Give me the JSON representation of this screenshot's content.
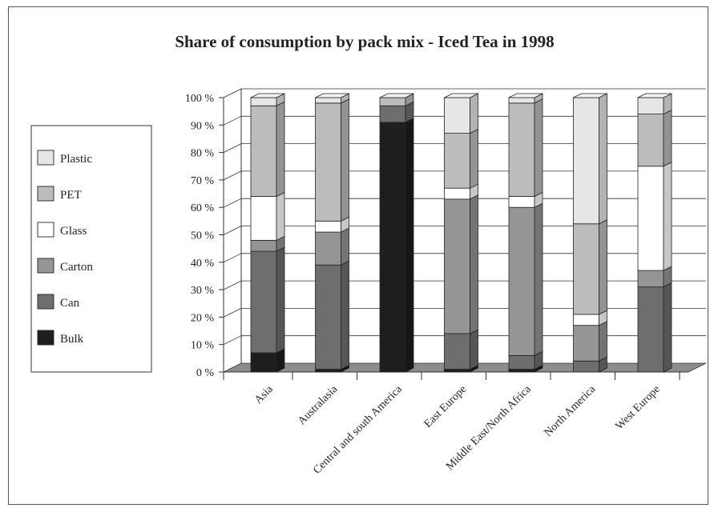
{
  "chart_data": {
    "type": "bar",
    "stacked": true,
    "title": "Share of consumption by pack mix - Iced Tea in 1998",
    "categories": [
      "Asia",
      "Australasia",
      "Central and south America",
      "East Europe",
      "Middle East/North Africa",
      "North America",
      "West Europe"
    ],
    "series": [
      {
        "name": "Bulk",
        "color": "#1e1e1e",
        "values": [
          7,
          1,
          91,
          1,
          1,
          0,
          0
        ]
      },
      {
        "name": "Can",
        "color": "#6e6e6e",
        "values": [
          37,
          38,
          6,
          13,
          5,
          4,
          31
        ]
      },
      {
        "name": "Carton",
        "color": "#959595",
        "values": [
          4,
          12,
          0,
          49,
          54,
          13,
          6
        ]
      },
      {
        "name": "Glass",
        "color": "#ffffff",
        "values": [
          16,
          4,
          0,
          4,
          4,
          4,
          38
        ]
      },
      {
        "name": "PET",
        "color": "#bcbcbc",
        "values": [
          33,
          43,
          3,
          20,
          34,
          33,
          19
        ]
      },
      {
        "name": "Plastic",
        "color": "#e6e6e6",
        "values": [
          3,
          2,
          0,
          13,
          2,
          46,
          6
        ]
      }
    ],
    "legend_order": [
      "Plastic",
      "PET",
      "Glass",
      "Carton",
      "Can",
      "Bulk"
    ],
    "yticks": [
      "0 %",
      "10 %",
      "20 %",
      "30 %",
      "40 %",
      "50 %",
      "60 %",
      "70 %",
      "80 %",
      "90 %",
      "100 %"
    ],
    "ylim": [
      0,
      100
    ],
    "grid": true,
    "legend_position": "left",
    "xlabel": "",
    "ylabel": ""
  }
}
